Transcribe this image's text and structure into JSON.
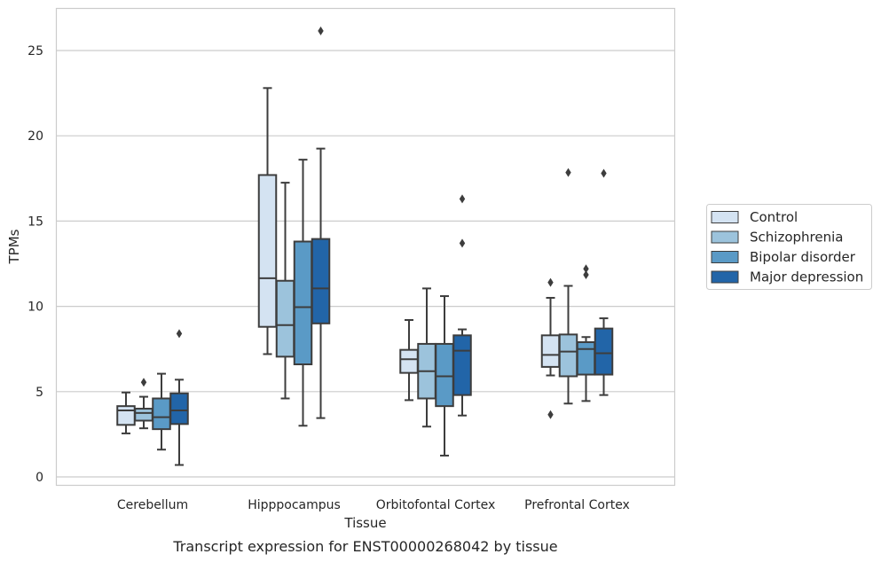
{
  "chart_data": {
    "type": "box",
    "title": "",
    "caption": "Transcript expression for ENST00000268042 by tissue",
    "xlabel": "Tissue",
    "ylabel": "TPMs",
    "ylim": [
      -0.5,
      27.5
    ],
    "yticks": [
      0,
      5,
      10,
      15,
      20,
      25
    ],
    "grid": "horizontal",
    "legend_position": "right",
    "categories": [
      "Cerebellum",
      "Hipppocampus",
      "Orbitofontal Cortex",
      "Prefrontal Cortex"
    ],
    "series": [
      {
        "name": "Control",
        "color": "#d4e3f2",
        "boxes": [
          {
            "whislo": 2.55,
            "q1": 3.05,
            "med": 3.9,
            "q3": 4.15,
            "whishi": 4.95,
            "fliers": []
          },
          {
            "whislo": 7.2,
            "q1": 8.8,
            "med": 11.65,
            "q3": 17.7,
            "whishi": 22.8,
            "fliers": []
          },
          {
            "whislo": 4.5,
            "q1": 6.1,
            "med": 6.9,
            "q3": 7.45,
            "whishi": 9.2,
            "fliers": []
          },
          {
            "whislo": 5.95,
            "q1": 6.45,
            "med": 7.15,
            "q3": 8.3,
            "whishi": 10.5,
            "fliers": [
              11.4,
              3.65
            ]
          }
        ]
      },
      {
        "name": "Schizophrenia",
        "color": "#9cc3dc",
        "boxes": [
          {
            "whislo": 2.85,
            "q1": 3.3,
            "med": 3.75,
            "q3": 4.0,
            "whishi": 4.7,
            "fliers": [
              5.55
            ]
          },
          {
            "whislo": 4.6,
            "q1": 7.05,
            "med": 8.9,
            "q3": 11.5,
            "whishi": 17.25,
            "fliers": []
          },
          {
            "whislo": 2.95,
            "q1": 4.6,
            "med": 6.2,
            "q3": 7.8,
            "whishi": 11.05,
            "fliers": []
          },
          {
            "whislo": 4.3,
            "q1": 5.9,
            "med": 7.35,
            "q3": 8.35,
            "whishi": 11.2,
            "fliers": [
              17.85
            ]
          }
        ]
      },
      {
        "name": "Bipolar disorder",
        "color": "#5a9ac6",
        "boxes": [
          {
            "whislo": 1.6,
            "q1": 2.8,
            "med": 3.5,
            "q3": 4.6,
            "whishi": 6.05,
            "fliers": []
          },
          {
            "whislo": 3.0,
            "q1": 6.6,
            "med": 9.95,
            "q3": 13.8,
            "whishi": 18.6,
            "fliers": []
          },
          {
            "whislo": 1.25,
            "q1": 4.15,
            "med": 5.9,
            "q3": 7.8,
            "whishi": 10.6,
            "fliers": []
          },
          {
            "whislo": 4.45,
            "q1": 6.0,
            "med": 7.5,
            "q3": 7.9,
            "whishi": 8.2,
            "fliers": [
              11.85,
              12.2
            ]
          }
        ]
      },
      {
        "name": "Major depression",
        "color": "#2265a8",
        "boxes": [
          {
            "whislo": 0.7,
            "q1": 3.1,
            "med": 3.9,
            "q3": 4.9,
            "whishi": 5.7,
            "fliers": [
              8.4
            ]
          },
          {
            "whislo": 3.45,
            "q1": 9.0,
            "med": 11.05,
            "q3": 13.95,
            "whishi": 19.25,
            "fliers": [
              26.15
            ]
          },
          {
            "whislo": 3.6,
            "q1": 4.8,
            "med": 7.4,
            "q3": 8.3,
            "whishi": 8.65,
            "fliers": [
              13.7,
              16.3
            ]
          },
          {
            "whislo": 4.8,
            "q1": 6.0,
            "med": 7.25,
            "q3": 8.7,
            "whishi": 9.3,
            "fliers": [
              17.8
            ]
          }
        ]
      }
    ]
  }
}
